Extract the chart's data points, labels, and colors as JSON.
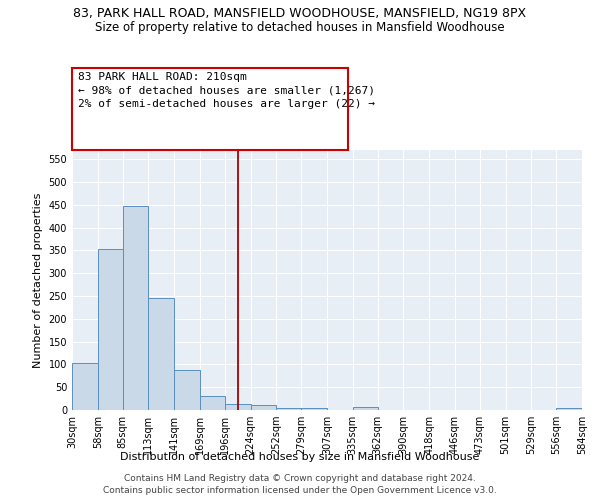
{
  "title": "83, PARK HALL ROAD, MANSFIELD WOODHOUSE, MANSFIELD, NG19 8PX",
  "subtitle": "Size of property relative to detached houses in Mansfield Woodhouse",
  "xlabel": "Distribution of detached houses by size in Mansfield Woodhouse",
  "ylabel": "Number of detached properties",
  "bin_edges": [
    30,
    58,
    85,
    113,
    141,
    169,
    196,
    224,
    252,
    279,
    307,
    335,
    362,
    390,
    418,
    446,
    473,
    501,
    529,
    556,
    584
  ],
  "bar_heights": [
    103,
    353,
    448,
    246,
    87,
    30,
    14,
    10,
    5,
    5,
    0,
    6,
    0,
    0,
    0,
    0,
    0,
    0,
    0,
    5
  ],
  "bar_color": "#c9d9e8",
  "bar_edge_color": "#5a8fc0",
  "vline_x": 210,
  "vline_color": "#aa0000",
  "annotation_line1": "83 PARK HALL ROAD: 210sqm",
  "annotation_line2": "← 98% of detached houses are smaller (1,267)",
  "annotation_line3": "2% of semi-detached houses are larger (22) →",
  "annotation_box_color": "#cc0000",
  "ylim": [
    0,
    570
  ],
  "yticks": [
    0,
    50,
    100,
    150,
    200,
    250,
    300,
    350,
    400,
    450,
    500,
    550
  ],
  "footer_line1": "Contains HM Land Registry data © Crown copyright and database right 2024.",
  "footer_line2": "Contains public sector information licensed under the Open Government Licence v3.0.",
  "plot_bg_color": "#e8eef5",
  "title_fontsize": 9,
  "subtitle_fontsize": 8.5,
  "xlabel_fontsize": 8,
  "ylabel_fontsize": 8,
  "tick_fontsize": 7,
  "annotation_fontsize": 8,
  "footer_fontsize": 6.5
}
